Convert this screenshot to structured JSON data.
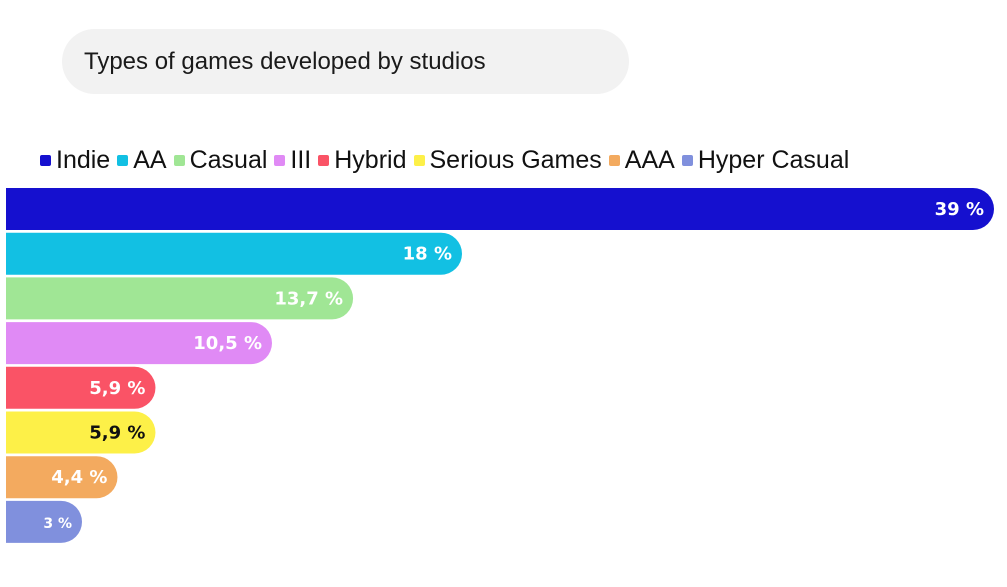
{
  "chart_data": {
    "type": "bar",
    "orientation": "horizontal",
    "title": "Types of games developed by studios",
    "categories": [
      "Indie",
      "AA",
      "Casual",
      "III",
      "Hybrid",
      "Serious Games",
      "AAA",
      "Hyper Casual"
    ],
    "values": [
      39,
      18,
      13.7,
      10.5,
      5.9,
      5.9,
      4.4,
      3
    ],
    "labels": [
      "39 %",
      "18 %",
      "13,7 %",
      "10,5 %",
      "5,9 %",
      "5,9 %",
      "4,4 %",
      "3 %"
    ],
    "colors": [
      "#1510cf",
      "#12c0e3",
      "#a0e695",
      "#e08af5",
      "#fa5366",
      "#fdf048",
      "#f3aa5f",
      "#8090dd"
    ],
    "label_colors": [
      "#ffffff",
      "#ffffff",
      "#ffffff",
      "#ffffff",
      "#ffffff",
      "#111111",
      "#ffffff",
      "#ffffff"
    ],
    "xlim": [
      0,
      39
    ],
    "legend_position": "top",
    "grid": false
  }
}
